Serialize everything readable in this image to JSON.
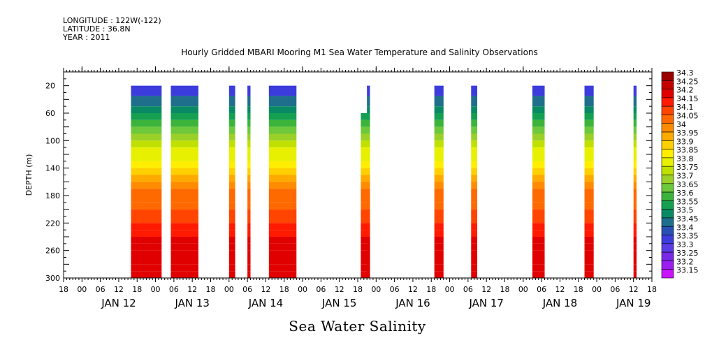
{
  "header": {
    "longitude": "LONGITUDE : 122W(-122)",
    "latitude": "LATITUDE : 36.8N",
    "year": "YEAR : 2011"
  },
  "chart_data": {
    "type": "heatmap",
    "title": "Hourly Gridded MBARI Mooring M1 Sea Water Temperature and Salinity Observations",
    "xlabel": "Sea Water Salinity",
    "ylabel": "DEPTH (m)",
    "ylim": [
      300,
      0
    ],
    "y_ticks": [
      "20",
      "60",
      "100",
      "140",
      "180",
      "220",
      "260",
      "300"
    ],
    "hour_tick_labels": [
      "18",
      "00",
      "06",
      "12",
      "18",
      "00",
      "06",
      "12",
      "18",
      "00",
      "06",
      "12",
      "18",
      "00",
      "06",
      "12",
      "18",
      "00",
      "06",
      "12",
      "18",
      "00",
      "06",
      "12",
      "18",
      "00",
      "06",
      "12",
      "18",
      "00",
      "06",
      "12",
      "18"
    ],
    "day_labels": [
      "JAN 12",
      "JAN 13",
      "JAN 14",
      "JAN 15",
      "JAN 16",
      "JAN 17",
      "JAN 18",
      "JAN 19"
    ],
    "colorbar": {
      "levels": [
        "34.3",
        "34.25",
        "34.2",
        "34.15",
        "34.1",
        "34.05",
        "34",
        "33.95",
        "33.9",
        "33.85",
        "33.8",
        "33.75",
        "33.7",
        "33.65",
        "33.6",
        "33.55",
        "33.5",
        "33.45",
        "33.4",
        "33.35",
        "33.3",
        "33.25",
        "33.2",
        "33.15"
      ],
      "colors": [
        "#9a0000",
        "#c40000",
        "#e00000",
        "#ff1a00",
        "#ff4500",
        "#ff6a00",
        "#ff8c00",
        "#ffaa00",
        "#ffd000",
        "#ffee00",
        "#e6f000",
        "#c0e000",
        "#9ad028",
        "#6ec83c",
        "#3cb43c",
        "#14a050",
        "#0a8a64",
        "#1e6e8c",
        "#2850b4",
        "#3c3cdc",
        "#5a3ce6",
        "#7828e6",
        "#9a1ef0",
        "#c814ff"
      ]
    },
    "profile_depths": [
      20,
      35,
      50,
      60,
      70,
      80,
      90,
      100,
      110,
      120,
      130,
      140,
      150,
      160,
      170,
      180,
      190,
      200,
      210,
      220,
      230,
      240,
      250,
      260,
      270,
      280,
      290,
      300
    ],
    "profile_values": [
      33.35,
      33.45,
      33.52,
      33.58,
      33.63,
      33.67,
      33.72,
      33.76,
      33.8,
      33.84,
      33.88,
      33.93,
      33.98,
      34.02,
      34.05,
      34.07,
      34.08,
      34.1,
      34.12,
      34.15,
      34.17,
      34.2,
      34.22,
      34.23,
      34.24,
      34.23,
      34.22,
      34.2
    ],
    "segments": [
      {
        "start": "2011-01-12T16:00",
        "end": "2011-01-13T02:00",
        "top_depth": 20
      },
      {
        "start": "2011-01-13T05:00",
        "end": "2011-01-13T14:00",
        "top_depth": 20
      },
      {
        "start": "2011-01-14T00:00",
        "end": "2011-01-14T02:00",
        "top_depth": 20
      },
      {
        "start": "2011-01-14T06:00",
        "end": "2011-01-14T07:00",
        "top_depth": 20
      },
      {
        "start": "2011-01-14T13:00",
        "end": "2011-01-14T22:00",
        "top_depth": 20
      },
      {
        "start": "2011-01-15T19:00",
        "end": "2011-01-15T22:00",
        "top_depth": 60
      },
      {
        "start": "2011-01-15T21:00",
        "end": "2011-01-15T22:00",
        "top_depth": 20
      },
      {
        "start": "2011-01-16T19:00",
        "end": "2011-01-16T22:00",
        "top_depth": 20
      },
      {
        "start": "2011-01-17T07:00",
        "end": "2011-01-17T09:00",
        "top_depth": 20
      },
      {
        "start": "2011-01-18T03:00",
        "end": "2011-01-18T07:00",
        "top_depth": 20
      },
      {
        "start": "2011-01-18T20:00",
        "end": "2011-01-18T23:00",
        "top_depth": 20
      },
      {
        "start": "2011-01-19T12:00",
        "end": "2011-01-19T13:00",
        "top_depth": 20
      }
    ],
    "grid": false
  }
}
